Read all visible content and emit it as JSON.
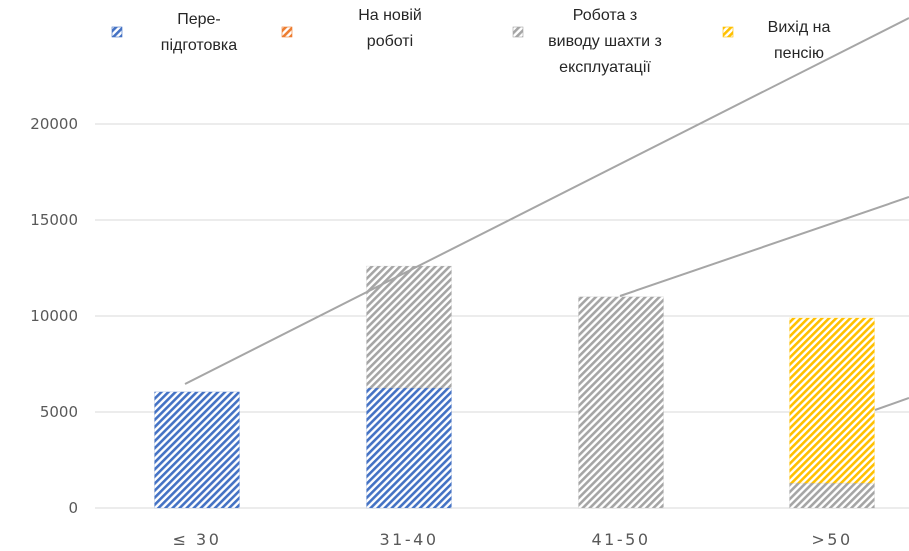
{
  "chart_data": {
    "type": "bar",
    "stacked": true,
    "categories": [
      "≤ 30",
      "31-40",
      "41-50",
      ">50"
    ],
    "y_ticks": [
      "0",
      "5000",
      "10000",
      "15000",
      "20000"
    ],
    "ylim": [
      0,
      20000
    ],
    "grid": true,
    "legend_position": "top",
    "series": [
      {
        "name": "Пере-підготовка",
        "legend_lines": [
          "Пере-",
          "підготовка"
        ],
        "color": "#4472C4",
        "values": [
          6050,
          6250,
          0,
          0
        ]
      },
      {
        "name": "На новій роботі",
        "legend_lines": [
          "На новій",
          "роботі"
        ],
        "color": "#ED7D31",
        "values": [
          0,
          0,
          0,
          0
        ]
      },
      {
        "name": "Робота з виводу шахти з експлуатації",
        "legend_lines": [
          "Робота з",
          "виводу шахти з",
          "експлуатації"
        ],
        "color": "#A5A5A5",
        "values": [
          0,
          6350,
          11000,
          1300
        ]
      },
      {
        "name": "Вихід на пенсію",
        "legend_lines": [
          "Вихід на",
          "пенсію"
        ],
        "color": "#FFC000",
        "values": [
          0,
          0,
          0,
          8600
        ]
      }
    ]
  }
}
